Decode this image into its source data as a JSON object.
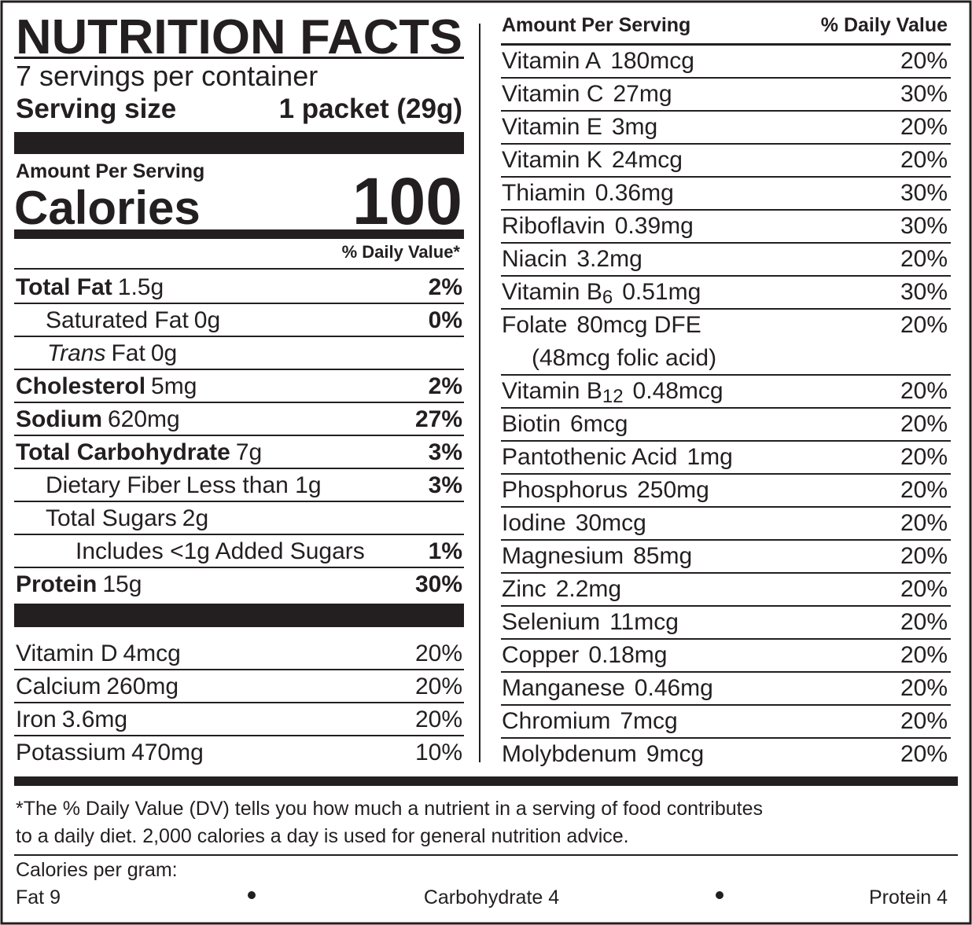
{
  "header": {
    "title": "NUTRITION FACTS",
    "servings": "7 servings per container",
    "serving_size_label": "Serving size",
    "serving_size": "1 packet (29g)"
  },
  "calories": {
    "amount_per_serving": "Amount Per Serving",
    "label": "Calories",
    "value": 100,
    "daily_value_header": "% Daily Value*"
  },
  "nutrients": [
    {
      "name": "Total Fat",
      "amount": "1.5g",
      "dv": "2%"
    },
    {
      "name": "Saturated Fat",
      "amount": "0g",
      "dv": "0%"
    },
    {
      "name_italic": "Trans",
      "name": "Fat",
      "amount": "0g"
    },
    {
      "name": "Cholesterol",
      "amount": "5mg",
      "dv": "2%"
    },
    {
      "name": "Sodium",
      "amount": "620mg",
      "dv": "27%"
    },
    {
      "name": "Total Carbohydrate",
      "amount": "7g",
      "dv": "3%"
    },
    {
      "name": "Dietary Fiber",
      "amount": "Less than 1g",
      "dv": "3%"
    },
    {
      "name": "Total Sugars",
      "amount": "2g"
    },
    {
      "name": "Includes <1g Added Sugars",
      "dv": "1%"
    },
    {
      "name": "Protein",
      "amount": "15g",
      "dv": "30%"
    }
  ],
  "vitamins_minerals": [
    {
      "name": "Vitamin D",
      "amount": "4mcg",
      "dv": "20%"
    },
    {
      "name": "Calcium",
      "amount": "260mg",
      "dv": "20%"
    },
    {
      "name": "Iron",
      "amount": "3.6mg",
      "dv": "20%"
    },
    {
      "name": "Potassium",
      "amount": "470mg",
      "dv": "10%"
    }
  ],
  "micronutrients": {
    "header": "Amount Per Serving",
    "dv_header": "% Daily Value",
    "rows": [
      {
        "name": "Vitamin A",
        "amount": "180mcg",
        "dv": "20%"
      },
      {
        "name": "Vitamin C",
        "amount": "27mg",
        "dv": "30%"
      },
      {
        "name": "Vitamin E",
        "amount": "3mg",
        "dv": "20%"
      },
      {
        "name": "Vitamin K",
        "amount": "24mcg",
        "dv": "20%"
      },
      {
        "name": "Thiamin",
        "amount": "0.36mg",
        "dv": "30%"
      },
      {
        "name": "Riboflavin",
        "amount": "0.39mg",
        "dv": "30%"
      },
      {
        "name": "Niacin",
        "amount": "3.2mg",
        "dv": "20%"
      },
      {
        "name": "Vitamin B",
        "subscript": "6",
        "amount": "0.51mg",
        "dv": "30%"
      },
      {
        "name": "Folate",
        "amount": "80mcg DFE",
        "note": "(48mcg folic acid)",
        "dv": "20%"
      },
      {
        "name": "Vitamin B",
        "subscript": "12",
        "amount": "0.48mcg",
        "dv": "20%"
      },
      {
        "name": "Biotin",
        "amount": "6mcg",
        "dv": "20%"
      },
      {
        "name": "Pantothenic Acid",
        "amount": "1mg",
        "dv": "20%"
      },
      {
        "name": "Phosphorus",
        "amount": "250mg",
        "dv": "20%"
      },
      {
        "name": "Iodine",
        "amount": "30mcg",
        "dv": "20%"
      },
      {
        "name": "Magnesium",
        "amount": "85mg",
        "dv": "20%"
      },
      {
        "name": "Zinc",
        "amount": "2.2mg",
        "dv": "20%"
      },
      {
        "name": "Selenium",
        "amount": "11mcg",
        "dv": "20%"
      },
      {
        "name": "Copper",
        "amount": "0.18mg",
        "dv": "20%"
      },
      {
        "name": "Manganese",
        "amount": "0.46mg",
        "dv": "20%"
      },
      {
        "name": "Chromium",
        "amount": "7mcg",
        "dv": "20%"
      },
      {
        "name": "Molybdenum",
        "amount": "9mcg",
        "dv": "20%"
      }
    ]
  },
  "footnote": [
    "*The % Daily Value (DV) tells you how much a nutrient in a serving of food contributes",
    "to a daily diet. 2,000 calories a day is used for general nutrition advice."
  ],
  "calories_per_gram": {
    "label": "Calories per gram:",
    "items": [
      "Fat 9",
      "Carbohydrate 4",
      "Protein 4"
    ]
  }
}
